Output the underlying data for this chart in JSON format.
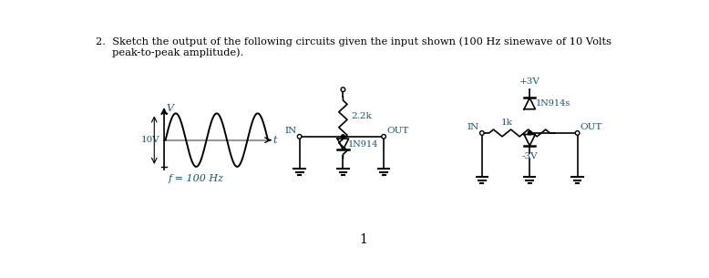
{
  "title_line1": "2.  Sketch the output of the following circuits given the input shown (100 Hz sinewave of 10 Volts",
  "title_line2": "     peak-to-peak amplitude).",
  "page_number": "1",
  "text_color": "#1a5276",
  "black_color": "#000000",
  "bg_color": "#ffffff",
  "sine_label_V": "V",
  "sine_label_10V": "10V",
  "sine_label_t": "t",
  "sine_label_f": "f = 100 Hz",
  "c1_in": "IN",
  "c1_res": "2.2k",
  "c1_diode": "1N914",
  "c1_out": "OUT",
  "c2_pos": "+3V",
  "c2_diode": "1N914s",
  "c2_res": "1k",
  "c2_in": "IN",
  "c2_out": "OUT",
  "c2_neg": "-3V",
  "fig_w": 7.78,
  "fig_h": 3.05,
  "dpi": 100
}
